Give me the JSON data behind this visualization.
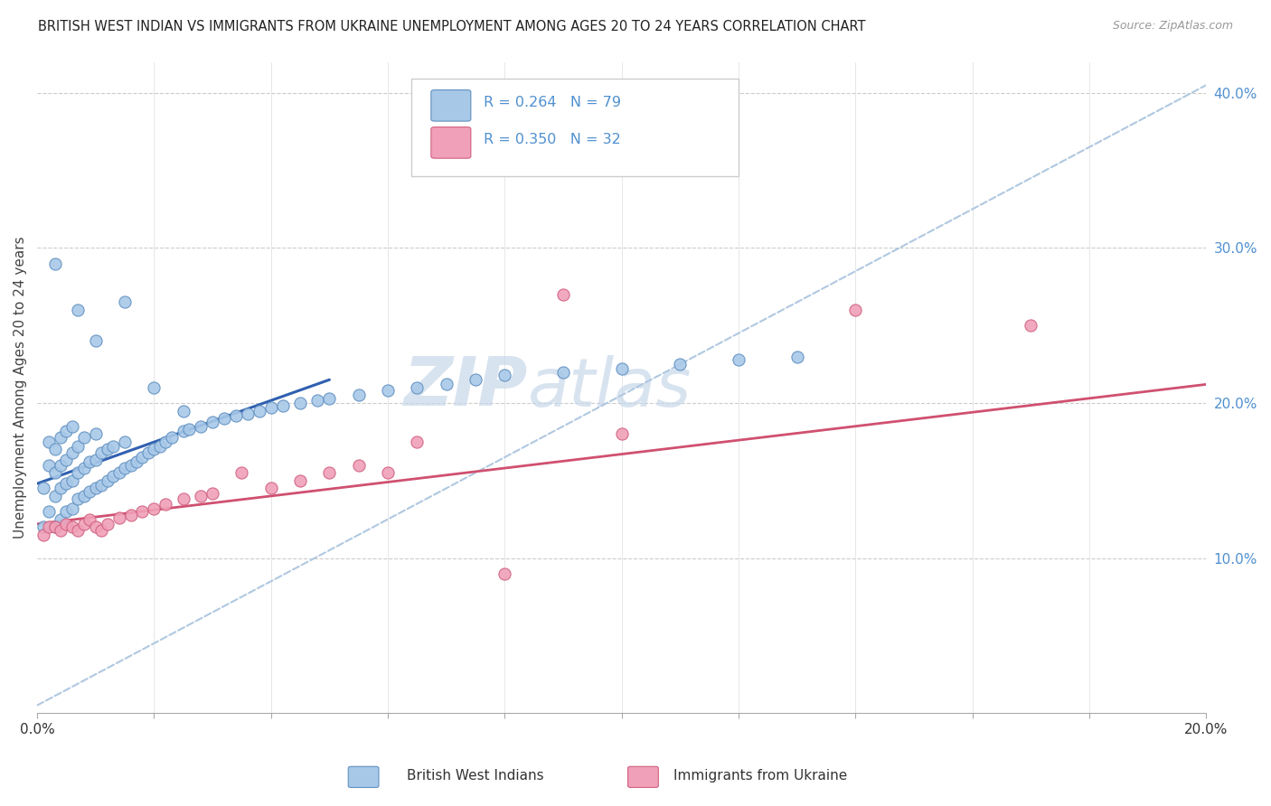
{
  "title": "BRITISH WEST INDIAN VS IMMIGRANTS FROM UKRAINE UNEMPLOYMENT AMONG AGES 20 TO 24 YEARS CORRELATION CHART",
  "source": "Source: ZipAtlas.com",
  "ylabel": "Unemployment Among Ages 20 to 24 years",
  "xlim": [
    0.0,
    0.2
  ],
  "ylim": [
    0.0,
    0.42
  ],
  "series1_color": "#a8c8e8",
  "series2_color": "#f0a0b8",
  "series1_edge": "#6090c0",
  "series2_edge": "#d06080",
  "line1_color": "#3060b0",
  "line2_color": "#d05070",
  "dash_color": "#b0c8e0",
  "watermark_color": "#c8d8ea",
  "tick_color": "#5090d0",
  "legend_r1_text": "R = 0.264   N = 79",
  "legend_r2_text": "R = 0.350   N = 32",
  "legend_label1": "British West Indians",
  "legend_label2": "Immigrants from Ukraine",
  "blue_x": [
    0.001,
    0.001,
    0.002,
    0.002,
    0.002,
    0.003,
    0.003,
    0.003,
    0.003,
    0.004,
    0.004,
    0.004,
    0.004,
    0.005,
    0.005,
    0.005,
    0.005,
    0.006,
    0.006,
    0.006,
    0.006,
    0.007,
    0.007,
    0.007,
    0.008,
    0.008,
    0.008,
    0.009,
    0.009,
    0.01,
    0.01,
    0.01,
    0.011,
    0.011,
    0.012,
    0.012,
    0.013,
    0.013,
    0.014,
    0.015,
    0.015,
    0.016,
    0.017,
    0.018,
    0.019,
    0.02,
    0.021,
    0.022,
    0.023,
    0.025,
    0.026,
    0.028,
    0.03,
    0.032,
    0.034,
    0.036,
    0.038,
    0.04,
    0.042,
    0.045,
    0.048,
    0.05,
    0.055,
    0.06,
    0.065,
    0.07,
    0.075,
    0.08,
    0.09,
    0.1,
    0.11,
    0.12,
    0.13,
    0.003,
    0.007,
    0.01,
    0.015,
    0.02,
    0.025
  ],
  "blue_y": [
    0.12,
    0.145,
    0.13,
    0.16,
    0.175,
    0.12,
    0.14,
    0.155,
    0.17,
    0.125,
    0.145,
    0.16,
    0.178,
    0.13,
    0.148,
    0.163,
    0.182,
    0.132,
    0.15,
    0.168,
    0.185,
    0.138,
    0.155,
    0.172,
    0.14,
    0.158,
    0.178,
    0.143,
    0.162,
    0.145,
    0.163,
    0.18,
    0.147,
    0.168,
    0.15,
    0.17,
    0.153,
    0.172,
    0.155,
    0.158,
    0.175,
    0.16,
    0.162,
    0.165,
    0.168,
    0.17,
    0.172,
    0.175,
    0.178,
    0.182,
    0.183,
    0.185,
    0.188,
    0.19,
    0.192,
    0.193,
    0.195,
    0.197,
    0.198,
    0.2,
    0.202,
    0.203,
    0.205,
    0.208,
    0.21,
    0.212,
    0.215,
    0.218,
    0.22,
    0.222,
    0.225,
    0.228,
    0.23,
    0.29,
    0.26,
    0.24,
    0.265,
    0.21,
    0.195
  ],
  "pink_x": [
    0.001,
    0.002,
    0.003,
    0.004,
    0.005,
    0.006,
    0.007,
    0.008,
    0.009,
    0.01,
    0.011,
    0.012,
    0.014,
    0.016,
    0.018,
    0.02,
    0.022,
    0.025,
    0.028,
    0.03,
    0.035,
    0.04,
    0.045,
    0.05,
    0.055,
    0.06,
    0.065,
    0.08,
    0.09,
    0.1,
    0.14,
    0.17
  ],
  "pink_y": [
    0.115,
    0.12,
    0.12,
    0.118,
    0.122,
    0.12,
    0.118,
    0.122,
    0.125,
    0.12,
    0.118,
    0.122,
    0.126,
    0.128,
    0.13,
    0.132,
    0.135,
    0.138,
    0.14,
    0.142,
    0.155,
    0.145,
    0.15,
    0.155,
    0.16,
    0.155,
    0.175,
    0.09,
    0.27,
    0.18,
    0.26,
    0.25
  ],
  "blue_line": [
    [
      0.0,
      0.05
    ],
    [
      0.148,
      0.215
    ]
  ],
  "pink_line": [
    [
      0.0,
      0.2
    ],
    [
      0.122,
      0.212
    ]
  ],
  "dash_line": [
    [
      0.0,
      0.2
    ],
    [
      0.005,
      0.405
    ]
  ]
}
